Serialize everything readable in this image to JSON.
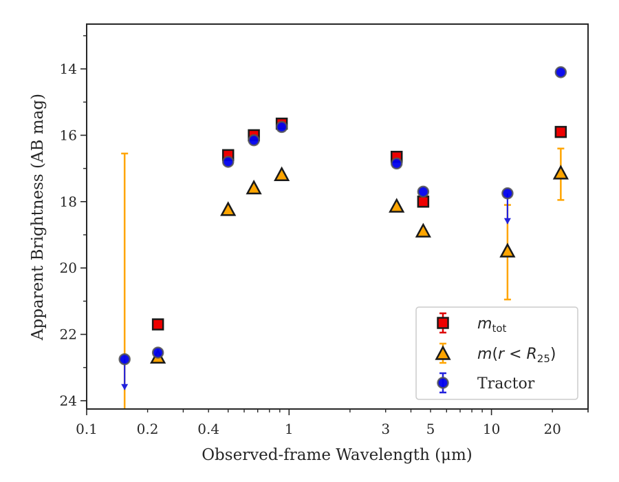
{
  "chart_data": {
    "type": "scatter",
    "xlabel": "Observed-frame Wavelength (μm)",
    "ylabel": "Apparent Brightness (AB mag)",
    "x_scale": "log",
    "xlim": [
      0.1,
      30
    ],
    "ylim": [
      24.25,
      12.65
    ],
    "y_inverted": true,
    "x_ticks": [
      0.1,
      0.2,
      0.4,
      1,
      3,
      5,
      10,
      20
    ],
    "x_tick_labels": [
      "0.1",
      "0.2",
      "0.4",
      "1",
      "3",
      "5",
      "10",
      "20"
    ],
    "y_ticks": [
      14,
      16,
      18,
      20,
      22,
      24
    ],
    "y_tick_labels": [
      "14",
      "16",
      "18",
      "20",
      "22",
      "24"
    ],
    "grid": false,
    "legend_position": "lower-right",
    "series": [
      {
        "key": "mtot",
        "legend_parts": [
          "m",
          "tot"
        ],
        "marker": "square",
        "fill": "#ee0000",
        "edge": "#1a1a1a",
        "errcolor": "#dd0000",
        "points": [
          {
            "x": 0.225,
            "y": 21.7
          },
          {
            "x": 0.5,
            "y": 16.6
          },
          {
            "x": 0.67,
            "y": 16.0
          },
          {
            "x": 0.92,
            "y": 15.65
          },
          {
            "x": 3.4,
            "y": 16.65
          },
          {
            "x": 4.6,
            "y": 18.0
          },
          {
            "x": 22.0,
            "y": 15.9
          }
        ]
      },
      {
        "key": "mr25",
        "legend_parts": [
          "m",
          "(",
          "r",
          " < ",
          "R",
          "25",
          ")"
        ],
        "marker": "triangle",
        "fill": "#ffa500",
        "edge": "#1a1a1a",
        "errcolor": "#ffa500",
        "points": [
          {
            "x": 0.225,
            "y": 22.7
          },
          {
            "x": 0.5,
            "y": 18.25
          },
          {
            "x": 0.67,
            "y": 17.6
          },
          {
            "x": 0.92,
            "y": 17.2
          },
          {
            "x": 3.4,
            "y": 18.15
          },
          {
            "x": 4.6,
            "y": 18.9
          },
          {
            "x": 12.0,
            "y": 19.5,
            "err_low": 18.1,
            "err_high": 20.95
          },
          {
            "x": 22.0,
            "y": 17.15,
            "err_low": 16.4,
            "err_high": 17.95
          }
        ],
        "limit_bar": {
          "x": 0.154,
          "from": 16.55,
          "to": 24.25
        }
      },
      {
        "key": "tractor",
        "name": "Tractor",
        "marker": "circle",
        "fill": "#0000ee",
        "edge": "#555555",
        "errcolor": "#2222dd",
        "points": [
          {
            "x": 0.154,
            "y": 22.75,
            "upper_limit": true
          },
          {
            "x": 0.225,
            "y": 22.55
          },
          {
            "x": 0.5,
            "y": 16.8
          },
          {
            "x": 0.67,
            "y": 16.15
          },
          {
            "x": 0.92,
            "y": 15.75
          },
          {
            "x": 3.4,
            "y": 16.85
          },
          {
            "x": 4.6,
            "y": 17.7
          },
          {
            "x": 12.0,
            "y": 17.75,
            "upper_limit": true
          },
          {
            "x": 22.0,
            "y": 14.1
          }
        ]
      }
    ]
  }
}
